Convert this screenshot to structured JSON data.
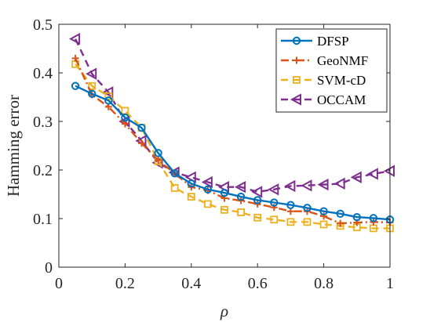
{
  "chart_data": {
    "type": "line",
    "xlabel": "ρ",
    "ylabel": "Hamming error",
    "xlim": [
      0,
      1
    ],
    "ylim": [
      0,
      0.5
    ],
    "xticks": [
      0,
      0.2,
      0.4,
      0.6,
      0.8,
      1
    ],
    "xtick_labels": [
      "0",
      "0.2",
      "0.4",
      "0.6",
      "0.8",
      "1"
    ],
    "yticks": [
      0,
      0.1,
      0.2,
      0.3,
      0.4,
      0.5
    ],
    "ytick_labels": [
      "0",
      "0.1",
      "0.2",
      "0.3",
      "0.4",
      "0.5"
    ],
    "grid": false,
    "legend_position": "top-right",
    "x": [
      0.05,
      0.1,
      0.15,
      0.2,
      0.25,
      0.3,
      0.35,
      0.4,
      0.45,
      0.5,
      0.55,
      0.6,
      0.65,
      0.7,
      0.75,
      0.8,
      0.85,
      0.9,
      0.95,
      1.0
    ],
    "series": [
      {
        "name": "DFSP",
        "color": "#0072BD",
        "line_style": "solid",
        "marker": "circle",
        "values": [
          0.373,
          0.357,
          0.343,
          0.308,
          0.287,
          0.235,
          0.193,
          0.172,
          0.16,
          0.153,
          0.145,
          0.138,
          0.133,
          0.128,
          0.122,
          0.115,
          0.11,
          0.103,
          0.101,
          0.098
        ]
      },
      {
        "name": "GeoNMF",
        "color": "#D95319",
        "line_style": "dashdot",
        "marker": "plus",
        "values": [
          0.43,
          0.355,
          0.33,
          0.295,
          0.255,
          0.22,
          0.193,
          0.165,
          0.158,
          0.142,
          0.137,
          0.13,
          0.123,
          0.115,
          0.115,
          0.105,
          0.09,
          0.092,
          0.093,
          0.092
        ]
      },
      {
        "name": "SVM-cD",
        "color": "#EDB120",
        "line_style": "dashed",
        "marker": "square",
        "values": [
          0.418,
          0.373,
          0.352,
          0.322,
          0.287,
          0.218,
          0.163,
          0.145,
          0.13,
          0.118,
          0.113,
          0.102,
          0.098,
          0.093,
          0.093,
          0.088,
          0.085,
          0.082,
          0.08,
          0.08
        ]
      },
      {
        "name": "OCCAM",
        "color": "#7E2F8E",
        "line_style": "dashed",
        "marker": "triangle-left",
        "values": [
          0.47,
          0.398,
          0.36,
          0.3,
          0.26,
          0.215,
          0.195,
          0.185,
          0.175,
          0.165,
          0.165,
          0.155,
          0.16,
          0.167,
          0.168,
          0.17,
          0.172,
          0.185,
          0.192,
          0.198
        ]
      }
    ]
  }
}
